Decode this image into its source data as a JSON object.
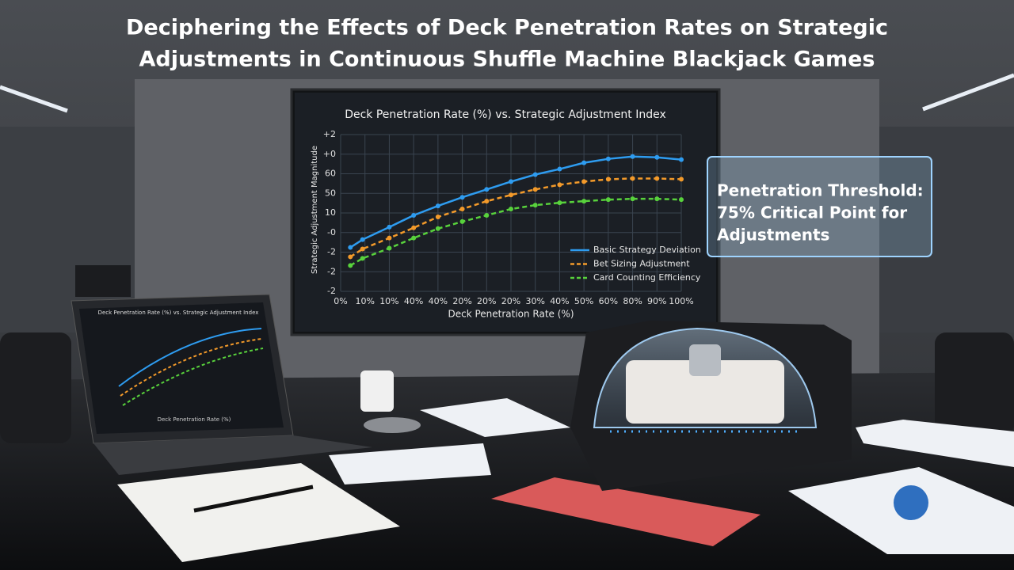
{
  "title": [
    "Deciphering the Effects of Deck Penetration Rates on Strategic",
    "Adjustments in Continuous Shuffle Machine Blackjack Games"
  ],
  "callout": [
    "Penetration Threshold:",
    "75% Critical Point for",
    "Adjustments"
  ],
  "laptop": {
    "title": "Deck Penetration Rate (%) vs. Strategic Adjustment Index",
    "x_label": "Deck Penetration Rate (%)"
  },
  "chart_data": {
    "type": "line",
    "title": "Deck Penetration Rate (%) vs. Strategic Adjustment Index",
    "x_label": "Deck Penetration Rate (%)",
    "y_label": "Strategic Adjustment Magnitude",
    "xlim": [
      0,
      14
    ],
    "xticks": [
      {
        "value": 0,
        "label": "0%"
      },
      {
        "value": 1,
        "label": "10%"
      },
      {
        "value": 2,
        "label": "10%"
      },
      {
        "value": 3,
        "label": "40%"
      },
      {
        "value": 4,
        "label": "40%"
      },
      {
        "value": 5,
        "label": "20%"
      },
      {
        "value": 6,
        "label": "20%"
      },
      {
        "value": 7,
        "label": "20%"
      },
      {
        "value": 8,
        "label": "30%"
      },
      {
        "value": 9,
        "label": "40%"
      },
      {
        "value": 10,
        "label": "50%"
      },
      {
        "value": 11,
        "label": "60%"
      },
      {
        "value": 12,
        "label": "80%"
      },
      {
        "value": 13,
        "label": "90%"
      },
      {
        "value": 14,
        "label": "100%"
      }
    ],
    "ylim": [
      0,
      8
    ],
    "yticks": [
      {
        "value": 0,
        "label": "-2"
      },
      {
        "value": 1,
        "label": "-2"
      },
      {
        "value": 2,
        "label": "-2"
      },
      {
        "value": 3,
        "label": "-0"
      },
      {
        "value": 4,
        "label": "10"
      },
      {
        "value": 5,
        "label": "50"
      },
      {
        "value": 6,
        "label": "60"
      },
      {
        "value": 7,
        "label": "+0"
      },
      {
        "value": 8,
        "label": "+2"
      }
    ],
    "grid": true,
    "legend": "lower right",
    "x": [
      0.4,
      0.9,
      2,
      3,
      4,
      5,
      6,
      7,
      8,
      9,
      10,
      11,
      12,
      13,
      14
    ],
    "series": [
      {
        "name": "Basic Strategy Deviation",
        "color": "#2e9cf0",
        "dash": false,
        "values": [
          2.24,
          2.64,
          3.28,
          3.88,
          4.36,
          4.8,
          5.2,
          5.6,
          5.96,
          6.24,
          6.56,
          6.76,
          6.88,
          6.84,
          6.72
        ]
      },
      {
        "name": "Bet Sizing Adjustment",
        "color": "#f39a2a",
        "dash": true,
        "values": [
          1.76,
          2.16,
          2.72,
          3.24,
          3.8,
          4.2,
          4.6,
          4.92,
          5.2,
          5.44,
          5.6,
          5.72,
          5.76,
          5.76,
          5.72
        ]
      },
      {
        "name": "Card Counting Efficiency",
        "color": "#58d23c",
        "dash": true,
        "values": [
          1.32,
          1.68,
          2.2,
          2.72,
          3.2,
          3.56,
          3.88,
          4.2,
          4.4,
          4.52,
          4.6,
          4.68,
          4.72,
          4.72,
          4.68
        ]
      }
    ]
  }
}
